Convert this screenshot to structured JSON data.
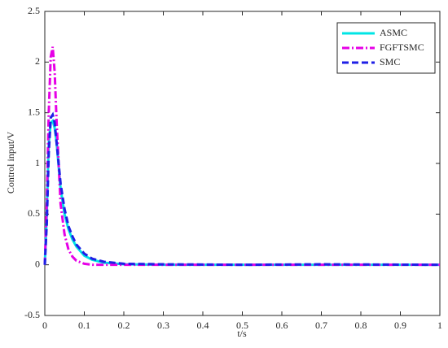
{
  "chart_data": {
    "type": "line",
    "x_label": "t/s",
    "y_label": "Control input/V",
    "x": [
      0,
      0.005,
      0.01,
      0.015,
      0.02,
      0.025,
      0.03,
      0.04,
      0.05,
      0.06,
      0.07,
      0.08,
      0.1,
      0.12,
      0.15,
      0.2,
      0.3,
      0.5,
      0.7,
      1
    ],
    "series": [
      {
        "name": "ASMC",
        "color": "#00e5e5",
        "style": "solid",
        "values": [
          0,
          0.5,
          1.2,
          1.4,
          1.42,
          1.35,
          1.2,
          0.75,
          0.5,
          0.35,
          0.25,
          0.18,
          0.09,
          0.05,
          0.02,
          0.005,
          0,
          0,
          0,
          0
        ]
      },
      {
        "name": "FGFTSMC",
        "color": "#e600e6",
        "style": "dashdot",
        "values": [
          0,
          0.6,
          1.5,
          2.05,
          2.15,
          1.9,
          1.4,
          0.6,
          0.3,
          0.15,
          0.08,
          0.04,
          0.01,
          0,
          0,
          0,
          0,
          0,
          0,
          0
        ]
      },
      {
        "name": "SMC",
        "color": "#1f1fe6",
        "style": "dashed",
        "values": [
          0,
          0.4,
          1.1,
          1.45,
          1.48,
          1.4,
          1.2,
          0.8,
          0.55,
          0.38,
          0.28,
          0.2,
          0.11,
          0.06,
          0.03,
          0.01,
          0.005,
          0,
          0.005,
          0
        ]
      }
    ],
    "xlim": [
      0,
      1
    ],
    "xticks": [
      0,
      0.1,
      0.2,
      0.3,
      0.4,
      0.5,
      0.6,
      0.7,
      0.8,
      0.9,
      1
    ],
    "ylim": [
      -0.5,
      2.5
    ],
    "yticks": [
      -0.5,
      0,
      0.5,
      1,
      1.5,
      2,
      2.5
    ],
    "grid": false,
    "legend": "upper right"
  }
}
